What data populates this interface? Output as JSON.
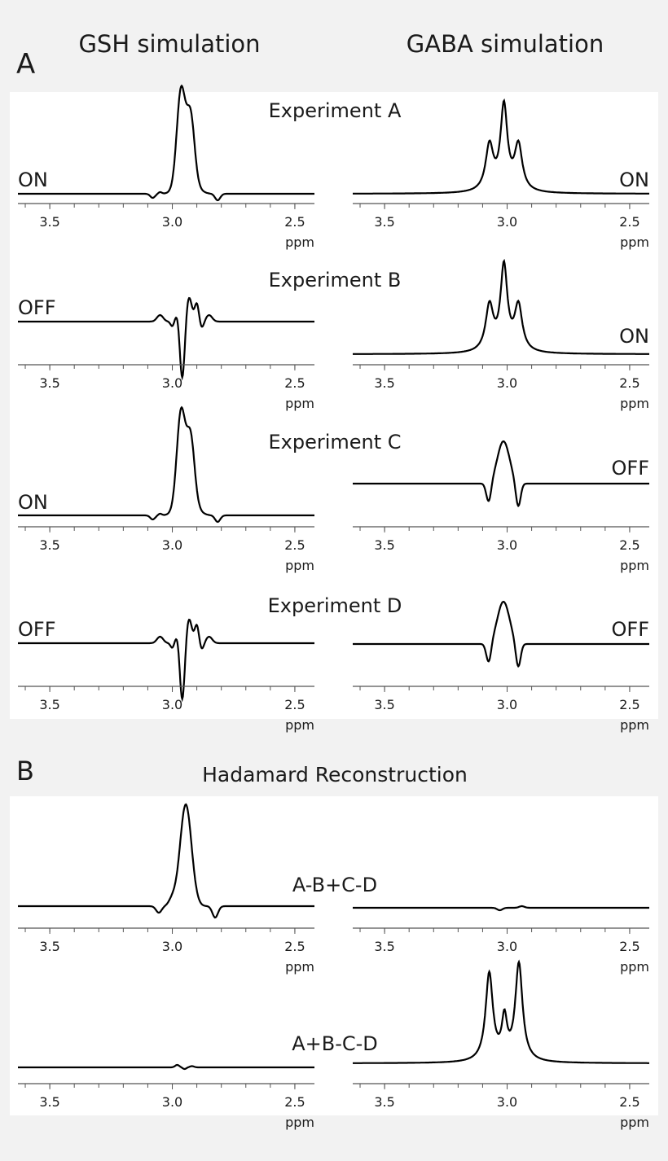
{
  "figure": {
    "column_titles": [
      "GSH simulation",
      "GABA simulation"
    ],
    "section_a_label": "A",
    "section_b_label": "B",
    "section_b_title": "Hadamard Reconstruction",
    "x_unit": "ppm",
    "x_ticks": [
      3.5,
      3.0,
      2.5
    ],
    "x_tick_labels": [
      "3.5",
      "3.0",
      "2.5"
    ]
  },
  "chart_data": [
    {
      "type": "line",
      "title": "Experiment A",
      "panels": [
        {
          "series": [
            {
              "name": "ON",
              "shape": "gsh_on",
              "values": "GSH ON: positive peak near 2.96 ppm with shoulder near 2.93 ppm"
            }
          ],
          "label": "ON",
          "xlim": [
            3.63,
            2.42
          ]
        },
        {
          "series": [
            {
              "name": "ON",
              "shape": "gaba_on",
              "values": "GABA ON: pseudo-triplet at 3.07, 3.01, 2.95 ppm"
            }
          ],
          "label": "ON",
          "xlim": [
            3.63,
            2.42
          ]
        }
      ]
    },
    {
      "type": "line",
      "title": "Experiment B",
      "panels": [
        {
          "series": [
            {
              "name": "OFF",
              "shape": "gsh_off"
            }
          ],
          "label": "OFF",
          "xlim": [
            3.63,
            2.42
          ]
        },
        {
          "series": [
            {
              "name": "ON",
              "shape": "gaba_on"
            }
          ],
          "label": "ON",
          "xlim": [
            3.63,
            2.42
          ]
        }
      ]
    },
    {
      "type": "line",
      "title": "Experiment C",
      "panels": [
        {
          "series": [
            {
              "name": "ON",
              "shape": "gsh_on"
            }
          ],
          "label": "ON",
          "xlim": [
            3.63,
            2.42
          ]
        },
        {
          "series": [
            {
              "name": "OFF",
              "shape": "gaba_off"
            }
          ],
          "label": "OFF",
          "xlim": [
            3.63,
            2.42
          ]
        }
      ]
    },
    {
      "type": "line",
      "title": "Experiment D",
      "panels": [
        {
          "series": [
            {
              "name": "OFF",
              "shape": "gsh_off"
            }
          ],
          "label": "OFF",
          "xlim": [
            3.63,
            2.42
          ]
        },
        {
          "series": [
            {
              "name": "OFF",
              "shape": "gaba_off"
            }
          ],
          "label": "OFF",
          "xlim": [
            3.63,
            2.42
          ]
        }
      ]
    },
    {
      "type": "line",
      "title": "A-B+C-D",
      "panels": [
        {
          "series": [
            {
              "shape": "gsh_diff"
            }
          ],
          "xlim": [
            3.63,
            2.42
          ]
        },
        {
          "series": [
            {
              "shape": "gaba_residual"
            }
          ],
          "xlim": [
            3.63,
            2.42
          ]
        }
      ]
    },
    {
      "type": "line",
      "title": "A+B-C-D",
      "panels": [
        {
          "series": [
            {
              "shape": "gsh_residual"
            }
          ],
          "xlim": [
            3.63,
            2.42
          ]
        },
        {
          "series": [
            {
              "shape": "gaba_diff"
            }
          ],
          "xlim": [
            3.63,
            2.42
          ]
        }
      ]
    }
  ]
}
